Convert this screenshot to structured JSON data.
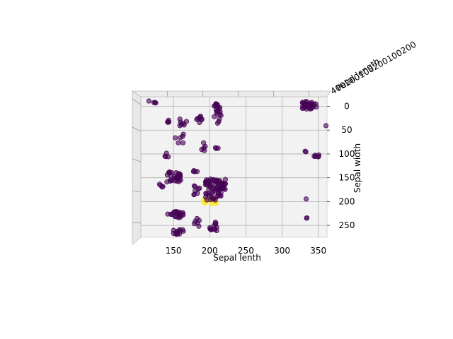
{
  "chart_data": {
    "type": "scatter",
    "projection": "3d-top-view",
    "title": "",
    "xlabel": "Sepal lenth",
    "ylabel": "Sepal width",
    "zlabel": "Petal length",
    "xlim": [
      105,
      362
    ],
    "ylim": [
      -20,
      275
    ],
    "x_ticks": [
      150,
      200,
      250,
      300,
      350
    ],
    "y_ticks": [
      0,
      50,
      100,
      150,
      200,
      250
    ],
    "z_tick_labels_overlapping": "400200100200100200",
    "grid": true,
    "colors": {
      "class_0": "#440154",
      "class_1": "#fde725",
      "pane": "#f2f2f2",
      "grid": "#b0b0b0"
    },
    "clusters": [
      {
        "class": 0,
        "cx": 207,
        "cy": -3,
        "w": 8,
        "h": 6,
        "n": 6
      },
      {
        "class": 0,
        "cx": 212,
        "cy": 20,
        "w": 12,
        "h": 35,
        "n": 14
      },
      {
        "class": 0,
        "cx": 186,
        "cy": 25,
        "w": 8,
        "h": 20,
        "n": 8
      },
      {
        "class": 0,
        "cx": 163,
        "cy": 32,
        "w": 10,
        "h": 20,
        "n": 7
      },
      {
        "class": 0,
        "cx": 144,
        "cy": 30,
        "w": 8,
        "h": 10,
        "n": 4
      },
      {
        "class": 0,
        "cx": 122,
        "cy": -10,
        "w": 12,
        "h": 6,
        "n": 4
      },
      {
        "class": 0,
        "cx": 337,
        "cy": -2,
        "w": 22,
        "h": 16,
        "n": 30
      },
      {
        "class": 0,
        "cx": 361,
        "cy": 40,
        "w": 2,
        "h": 2,
        "n": 1
      },
      {
        "class": 0,
        "cx": 348,
        "cy": 105,
        "w": 10,
        "h": 6,
        "n": 6
      },
      {
        "class": 0,
        "cx": 332,
        "cy": 95,
        "w": 4,
        "h": 4,
        "n": 2
      },
      {
        "class": 0,
        "cx": 334,
        "cy": 235,
        "w": 3,
        "h": 4,
        "n": 2
      },
      {
        "class": 0,
        "cx": 333,
        "cy": 195,
        "w": 2,
        "h": 2,
        "n": 1
      },
      {
        "class": 0,
        "cx": 158,
        "cy": 68,
        "w": 12,
        "h": 20,
        "n": 6
      },
      {
        "class": 0,
        "cx": 141,
        "cy": 100,
        "w": 8,
        "h": 12,
        "n": 4
      },
      {
        "class": 0,
        "cx": 191,
        "cy": 85,
        "w": 10,
        "h": 20,
        "n": 5
      },
      {
        "class": 0,
        "cx": 210,
        "cy": 85,
        "w": 4,
        "h": 12,
        "n": 3
      },
      {
        "class": 0,
        "cx": 152,
        "cy": 148,
        "w": 24,
        "h": 22,
        "n": 25
      },
      {
        "class": 0,
        "cx": 133,
        "cy": 166,
        "w": 8,
        "h": 8,
        "n": 4
      },
      {
        "class": 0,
        "cx": 178,
        "cy": 135,
        "w": 10,
        "h": 10,
        "n": 4
      },
      {
        "class": 0,
        "cx": 205,
        "cy": 175,
        "w": 22,
        "h": 45,
        "n": 55
      },
      {
        "class": 0,
        "cx": 218,
        "cy": 163,
        "w": 8,
        "h": 25,
        "n": 12
      },
      {
        "class": 0,
        "cx": 182,
        "cy": 178,
        "w": 10,
        "h": 22,
        "n": 8
      },
      {
        "class": 0,
        "cx": 153,
        "cy": 228,
        "w": 22,
        "h": 14,
        "n": 20
      },
      {
        "class": 0,
        "cx": 157,
        "cy": 264,
        "w": 16,
        "h": 10,
        "n": 12
      },
      {
        "class": 0,
        "cx": 182,
        "cy": 245,
        "w": 10,
        "h": 20,
        "n": 6
      },
      {
        "class": 0,
        "cx": 205,
        "cy": 252,
        "w": 12,
        "h": 18,
        "n": 12
      },
      {
        "class": 1,
        "cx": 200,
        "cy": 198,
        "w": 22,
        "h": 14,
        "n": 18
      }
    ]
  }
}
